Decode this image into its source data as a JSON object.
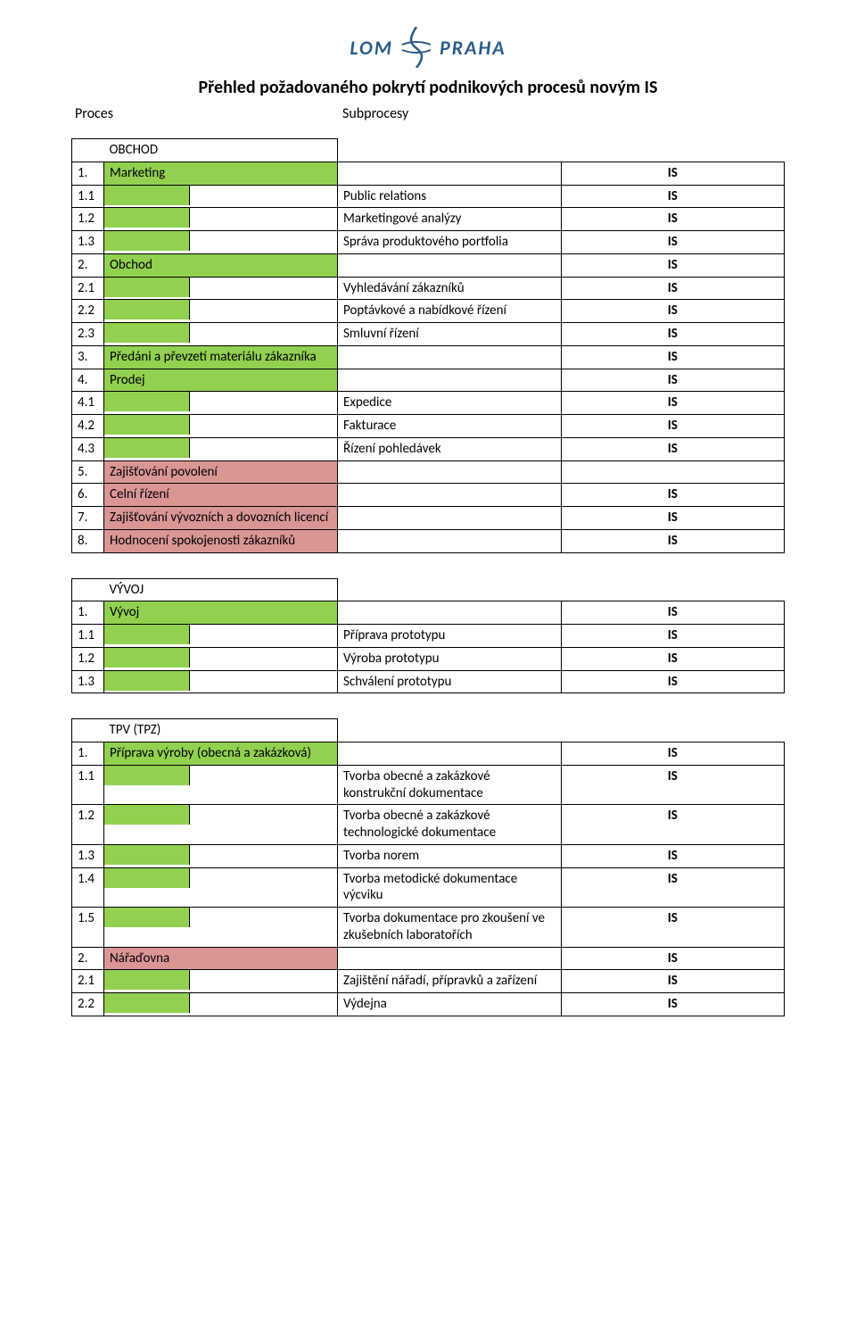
{
  "logo": {
    "left_text": "LOM",
    "right_text": "PRAHA"
  },
  "title": "Přehled požadovaného pokrytí podnikových procesů novým IS",
  "header": {
    "left": "Proces",
    "right": "Subprocesy"
  },
  "colors": {
    "green": "#92d050",
    "red": "#da9694",
    "border": "#000000",
    "logo_text": "#2a5a87"
  },
  "is_label": "IS",
  "sections": [
    {
      "name": "OBCHOD",
      "rows": [
        {
          "kind": "proc",
          "num": "1.",
          "label": "Marketing",
          "fill": "green",
          "is": "IS"
        },
        {
          "kind": "sub",
          "num": "1.1",
          "label": "Public relations",
          "is": "IS"
        },
        {
          "kind": "sub",
          "num": "1.2",
          "label": "Marketingové analýzy",
          "is": "IS"
        },
        {
          "kind": "sub",
          "num": "1.3",
          "label": "Správa produktového portfolia",
          "is": "IS"
        },
        {
          "kind": "proc",
          "num": "2.",
          "label": "Obchod",
          "fill": "green",
          "is": "IS"
        },
        {
          "kind": "sub",
          "num": "2.1",
          "label": "Vyhledávání zákazníků",
          "is": "IS"
        },
        {
          "kind": "sub",
          "num": "2.2",
          "label": "Poptávkové a nabídkové řízení",
          "is": "IS"
        },
        {
          "kind": "sub",
          "num": "2.3",
          "label": "Smluvní řízení",
          "is": "IS"
        },
        {
          "kind": "proc",
          "num": "3.",
          "label": "Předáni a převzetí materiálu zákazníka",
          "fill": "green",
          "is": "IS"
        },
        {
          "kind": "proc",
          "num": "4.",
          "label": "Prodej",
          "fill": "green",
          "is": "IS"
        },
        {
          "kind": "sub",
          "num": "4.1",
          "label": "Expedice",
          "is": "IS"
        },
        {
          "kind": "sub",
          "num": "4.2",
          "label": "Fakturace",
          "is": "IS"
        },
        {
          "kind": "sub",
          "num": "4.3",
          "label": "Řízení pohledávek",
          "is": "IS"
        },
        {
          "kind": "proc",
          "num": "5.",
          "label": "Zajišťování povolení",
          "fill": "red",
          "is": ""
        },
        {
          "kind": "proc",
          "num": "6.",
          "label": "Celní řízení",
          "fill": "red",
          "is": "IS"
        },
        {
          "kind": "proc",
          "num": "7.",
          "label": "Zajišťování vývozních a dovozních licencí",
          "fill": "red",
          "is": "IS"
        },
        {
          "kind": "proc",
          "num": "8.",
          "label": "Hodnocení spokojenosti zákazníků",
          "fill": "red",
          "is": "IS"
        }
      ]
    },
    {
      "name": "VÝVOJ",
      "rows": [
        {
          "kind": "proc",
          "num": "1.",
          "label": "Vývoj",
          "fill": "green",
          "is": "IS"
        },
        {
          "kind": "sub",
          "num": "1.1",
          "label": "Příprava prototypu",
          "is": "IS"
        },
        {
          "kind": "sub",
          "num": "1.2",
          "label": "Výroba prototypu",
          "is": "IS"
        },
        {
          "kind": "sub",
          "num": "1.3",
          "label": "Schválení prototypu",
          "is": "IS"
        }
      ]
    },
    {
      "name": "TPV (TPZ)",
      "rows": [
        {
          "kind": "proc",
          "num": "1.",
          "label": "Příprava výroby (obecná a zakázková)",
          "fill": "green",
          "is": "IS"
        },
        {
          "kind": "sub",
          "num": "1.1",
          "label": "Tvorba obecné a zakázkové konstrukční dokumentace",
          "is": "IS"
        },
        {
          "kind": "sub",
          "num": "1.2",
          "label": "Tvorba obecné a zakázkové technologické dokumentace",
          "is": "IS"
        },
        {
          "kind": "sub",
          "num": "1.3",
          "label": "Tvorba norem",
          "is": "IS"
        },
        {
          "kind": "sub",
          "num": "1.4",
          "label": "Tvorba metodické výcviku dokumentace",
          "is": "IS",
          "label_override": "Tvorba metodické dokumentace výcviku"
        },
        {
          "kind": "sub",
          "num": "1.5",
          "label": "Tvorba dokumentace pro zkoušení ve zkušebních laboratořích",
          "is": "IS"
        },
        {
          "kind": "proc",
          "num": "2.",
          "label": "Nářaďovna",
          "fill": "red",
          "is": "IS"
        },
        {
          "kind": "sub",
          "num": "2.1",
          "label": "Zajištění nářadí, přípravků a zařízení",
          "is": "IS"
        },
        {
          "kind": "sub",
          "num": "2.2",
          "label": "Výdejna",
          "is": "IS"
        }
      ]
    }
  ]
}
